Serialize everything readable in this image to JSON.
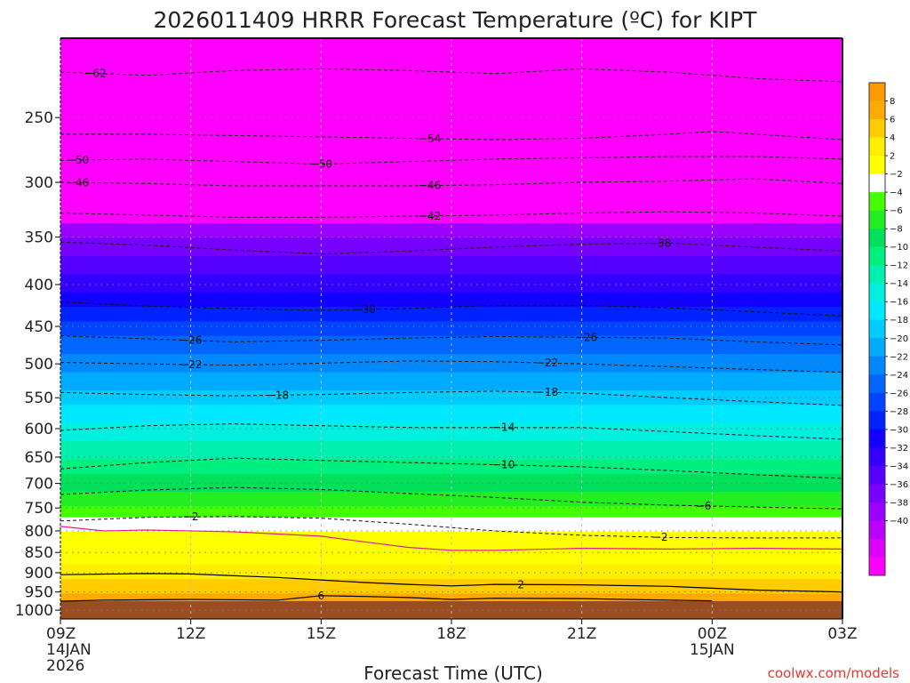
{
  "chart_data": {
    "type": "heatmap",
    "title": "2026011409 HRRR Forecast Temperature (ºC) for KIPT",
    "xlabel": "Forecast Time (UTC)",
    "ylabel": "",
    "credit": "coolwx.com/models",
    "x_hours": [
      9,
      12,
      15,
      18,
      21,
      24,
      27
    ],
    "x_ticks": [
      {
        "label": "09Z",
        "sub1": "14JAN",
        "sub2": "2026"
      },
      {
        "label": "12Z",
        "sub1": "",
        "sub2": ""
      },
      {
        "label": "15Z",
        "sub1": "",
        "sub2": ""
      },
      {
        "label": "18Z",
        "sub1": "",
        "sub2": ""
      },
      {
        "label": "21Z",
        "sub1": "",
        "sub2": ""
      },
      {
        "label": "00Z",
        "sub1": "15JAN",
        "sub2": ""
      },
      {
        "label": "03Z",
        "sub1": "",
        "sub2": ""
      }
    ],
    "y_axis": "pressure (hPa, log scale, inverted)",
    "ylim": [
      1025,
      200
    ],
    "y_ticks": [
      250,
      300,
      350,
      400,
      450,
      500,
      550,
      600,
      650,
      700,
      750,
      800,
      850,
      900,
      950,
      1000
    ],
    "surface_pressure": 975,
    "surface_color": "#9b4d22",
    "colorbar_labels": [
      "8",
      "6",
      "4",
      "2",
      "-2",
      "-4",
      "-6",
      "-8",
      "-10",
      "-12",
      "-14",
      "-16",
      "-18",
      "-20",
      "-22",
      "-24",
      "-26",
      "-28",
      "-30",
      "-32",
      "-34",
      "-36",
      "-38",
      "-40"
    ],
    "colorbar_colors": [
      "#ff9900",
      "#ffaa00",
      "#ffcc00",
      "#ffee00",
      "#ffff00",
      "#ffffff",
      "#44ff00",
      "#22ee22",
      "#00e05a",
      "#00f080",
      "#00f0b0",
      "#00f0e0",
      "#00e8ff",
      "#00ccff",
      "#00aaff",
      "#0088ff",
      "#0066ff",
      "#0044ff",
      "#0022ff",
      "#1100ff",
      "#3300ff",
      "#5500ff",
      "#7700ff",
      "#9900ff",
      "#bb00ff",
      "#dd00ff",
      "#ff00ff"
    ],
    "color_levels": [
      8,
      6,
      4,
      2,
      -2,
      -4,
      -6,
      -8,
      -10,
      -12,
      -14,
      -16,
      -18,
      -20,
      -22,
      -24,
      -26,
      -28,
      -30,
      -32,
      -34,
      -36,
      -38,
      -40
    ],
    "temperature_profile": [
      {
        "p": 975,
        "t": 8
      },
      {
        "p": 950,
        "t": 6
      },
      {
        "p": 920,
        "t": 4
      },
      {
        "p": 880,
        "t": 2
      },
      {
        "p": 840,
        "t": 0
      },
      {
        "p": 800,
        "t": -2
      },
      {
        "p": 760,
        "t": -5
      },
      {
        "p": 720,
        "t": -8
      },
      {
        "p": 680,
        "t": -10
      },
      {
        "p": 640,
        "t": -13
      },
      {
        "p": 600,
        "t": -15
      },
      {
        "p": 550,
        "t": -19
      },
      {
        "p": 500,
        "t": -23
      },
      {
        "p": 450,
        "t": -27
      },
      {
        "p": 400,
        "t": -33
      },
      {
        "p": 350,
        "t": -38
      },
      {
        "p": 300,
        "t": -46
      },
      {
        "p": 250,
        "t": -54
      },
      {
        "p": 200,
        "t": -62
      }
    ],
    "contours": [
      {
        "label": "-62",
        "label_hour": 9.8,
        "points": [
          [
            9,
            220
          ],
          [
            11,
            222
          ],
          [
            13,
            219
          ],
          [
            15,
            218
          ],
          [
            17,
            219
          ],
          [
            19,
            221
          ],
          [
            21,
            218
          ],
          [
            23,
            220
          ],
          [
            25,
            224
          ],
          [
            27,
            226
          ]
        ]
      },
      {
        "label": "-54",
        "label_hour": 17.5,
        "points": [
          [
            9,
            262
          ],
          [
            11,
            262
          ],
          [
            13,
            263
          ],
          [
            15,
            264
          ],
          [
            17,
            265
          ],
          [
            19,
            266
          ],
          [
            21,
            265
          ],
          [
            23,
            262
          ],
          [
            24,
            260
          ],
          [
            25,
            262
          ],
          [
            27,
            266
          ]
        ]
      },
      {
        "label": "-50",
        "label_hour": 9.4,
        "points": [
          [
            9,
            282
          ],
          [
            11,
            281
          ],
          [
            13,
            283
          ],
          [
            15,
            285
          ],
          [
            17,
            283
          ],
          [
            19,
            281
          ],
          [
            21,
            280
          ],
          [
            23,
            279
          ],
          [
            25,
            279
          ],
          [
            27,
            281
          ]
        ]
      },
      {
        "label": "-50",
        "label_hour": 15.0,
        "points": [
          [
            9,
            282
          ],
          [
            27,
            281
          ]
        ]
      },
      {
        "label": "-46",
        "label_hour": 9.4,
        "points": [
          [
            9,
            300
          ],
          [
            11,
            301
          ],
          [
            13,
            303
          ],
          [
            15,
            303
          ],
          [
            17,
            303
          ],
          [
            19,
            302
          ],
          [
            21,
            300
          ],
          [
            23,
            299
          ],
          [
            25,
            297
          ],
          [
            27,
            301
          ]
        ]
      },
      {
        "label": "-46",
        "label_hour": 17.5,
        "points": [
          [
            9,
            300
          ],
          [
            27,
            301
          ]
        ]
      },
      {
        "label": "-42",
        "label_hour": 17.5,
        "points": [
          [
            9,
            327
          ],
          [
            11,
            329
          ],
          [
            13,
            331
          ],
          [
            15,
            331
          ],
          [
            17,
            330
          ],
          [
            19,
            329
          ],
          [
            21,
            327
          ],
          [
            23,
            326
          ],
          [
            25,
            327
          ],
          [
            27,
            330
          ]
        ]
      },
      {
        "label": "-38",
        "label_hour": 22.8,
        "points": [
          [
            9,
            355
          ],
          [
            11,
            358
          ],
          [
            13,
            363
          ],
          [
            15,
            367
          ],
          [
            17,
            364
          ],
          [
            19,
            360
          ],
          [
            21,
            357
          ],
          [
            23,
            356
          ],
          [
            25,
            360
          ],
          [
            27,
            364
          ]
        ]
      },
      {
        "label": "-30",
        "label_hour": 16.0,
        "points": [
          [
            9,
            420
          ],
          [
            11,
            425
          ],
          [
            13,
            428
          ],
          [
            15,
            430
          ],
          [
            17,
            428
          ],
          [
            19,
            424
          ],
          [
            21,
            424
          ],
          [
            23,
            427
          ],
          [
            25,
            432
          ],
          [
            27,
            437
          ]
        ]
      },
      {
        "label": "-26",
        "label_hour": 12.0,
        "points": [
          [
            9,
            462
          ],
          [
            11,
            466
          ],
          [
            13,
            470
          ],
          [
            15,
            468
          ],
          [
            17,
            465
          ],
          [
            19,
            463
          ],
          [
            21,
            464
          ],
          [
            23,
            465
          ],
          [
            25,
            470
          ],
          [
            27,
            474
          ]
        ]
      },
      {
        "label": "-26",
        "label_hour": 21.1,
        "points": [
          [
            9,
            462
          ],
          [
            27,
            474
          ]
        ]
      },
      {
        "label": "-22",
        "label_hour": 12.0,
        "points": [
          [
            9,
            498
          ],
          [
            11,
            500
          ],
          [
            13,
            502
          ],
          [
            15,
            499
          ],
          [
            17,
            496
          ],
          [
            19,
            497
          ],
          [
            21,
            500
          ],
          [
            23,
            504
          ],
          [
            25,
            508
          ],
          [
            27,
            512
          ]
        ]
      },
      {
        "label": "-22",
        "label_hour": 20.2,
        "points": [
          [
            9,
            498
          ],
          [
            27,
            512
          ]
        ]
      },
      {
        "label": "-18",
        "label_hour": 14.0,
        "points": [
          [
            9,
            542
          ],
          [
            11,
            545
          ],
          [
            13,
            547
          ],
          [
            15,
            545
          ],
          [
            17,
            542
          ],
          [
            19,
            540
          ],
          [
            21,
            543
          ],
          [
            23,
            550
          ],
          [
            25,
            556
          ],
          [
            27,
            562
          ]
        ]
      },
      {
        "label": "-18",
        "label_hour": 20.2,
        "points": [
          [
            9,
            542
          ],
          [
            27,
            562
          ]
        ]
      },
      {
        "label": "-14",
        "label_hour": 19.2,
        "points": [
          [
            9,
            603
          ],
          [
            11,
            595
          ],
          [
            13,
            592
          ],
          [
            15,
            595
          ],
          [
            17,
            598
          ],
          [
            19,
            598
          ],
          [
            21,
            598
          ],
          [
            23,
            605
          ],
          [
            25,
            612
          ],
          [
            27,
            618
          ]
        ]
      },
      {
        "label": "-10",
        "label_hour": 19.2,
        "points": [
          [
            9,
            672
          ],
          [
            11,
            660
          ],
          [
            13,
            652
          ],
          [
            15,
            656
          ],
          [
            17,
            660
          ],
          [
            19,
            664
          ],
          [
            21,
            668
          ],
          [
            23,
            675
          ],
          [
            25,
            683
          ],
          [
            27,
            690
          ]
        ]
      },
      {
        "label": "-6",
        "label_hour": 23.8,
        "points": [
          [
            9,
            722
          ],
          [
            11,
            713
          ],
          [
            13,
            708
          ],
          [
            15,
            712
          ],
          [
            17,
            720
          ],
          [
            19,
            728
          ],
          [
            21,
            738
          ],
          [
            23,
            744
          ],
          [
            25,
            748
          ],
          [
            27,
            752
          ]
        ]
      },
      {
        "label": "-2",
        "label_hour": 12.0,
        "points": [
          [
            9,
            778
          ],
          [
            11,
            770
          ],
          [
            13,
            768
          ],
          [
            15,
            772
          ],
          [
            17,
            785
          ],
          [
            19,
            800
          ],
          [
            21,
            810
          ],
          [
            23,
            815
          ],
          [
            25,
            816
          ],
          [
            27,
            816
          ]
        ]
      },
      {
        "label": "-2",
        "label_hour": 22.8,
        "points": [
          [
            9,
            778
          ],
          [
            27,
            816
          ]
        ]
      }
    ],
    "solid_contours": [
      {
        "label": "2",
        "label_hour": 19.6,
        "color": "#000000",
        "points": [
          [
            9,
            905
          ],
          [
            11,
            902
          ],
          [
            12,
            903
          ],
          [
            14,
            912
          ],
          [
            16,
            925
          ],
          [
            17,
            930
          ],
          [
            18,
            934
          ],
          [
            19,
            930
          ],
          [
            21,
            931
          ],
          [
            23,
            935
          ],
          [
            24,
            940
          ],
          [
            25,
            945
          ],
          [
            27,
            950
          ]
        ]
      },
      {
        "label": "6",
        "label_hour": 15.0,
        "color": "#000000",
        "points": [
          [
            9,
            975
          ],
          [
            10,
            972
          ],
          [
            12,
            970
          ],
          [
            14,
            972
          ],
          [
            15,
            960
          ],
          [
            16,
            962
          ],
          [
            17,
            965
          ],
          [
            18,
            970
          ],
          [
            19,
            967
          ],
          [
            21,
            968
          ],
          [
            23,
            972
          ],
          [
            24,
            974
          ]
        ]
      },
      {
        "label": "0",
        "label_hour": 0,
        "color": "#e0208a",
        "points": [
          [
            9,
            790
          ],
          [
            10,
            800
          ],
          [
            11,
            798
          ],
          [
            13,
            802
          ],
          [
            15,
            812
          ],
          [
            16,
            825
          ],
          [
            17,
            838
          ],
          [
            18,
            845
          ],
          [
            19,
            845
          ],
          [
            21,
            840
          ],
          [
            23,
            842
          ],
          [
            25,
            840
          ],
          [
            27,
            842
          ]
        ]
      }
    ]
  }
}
